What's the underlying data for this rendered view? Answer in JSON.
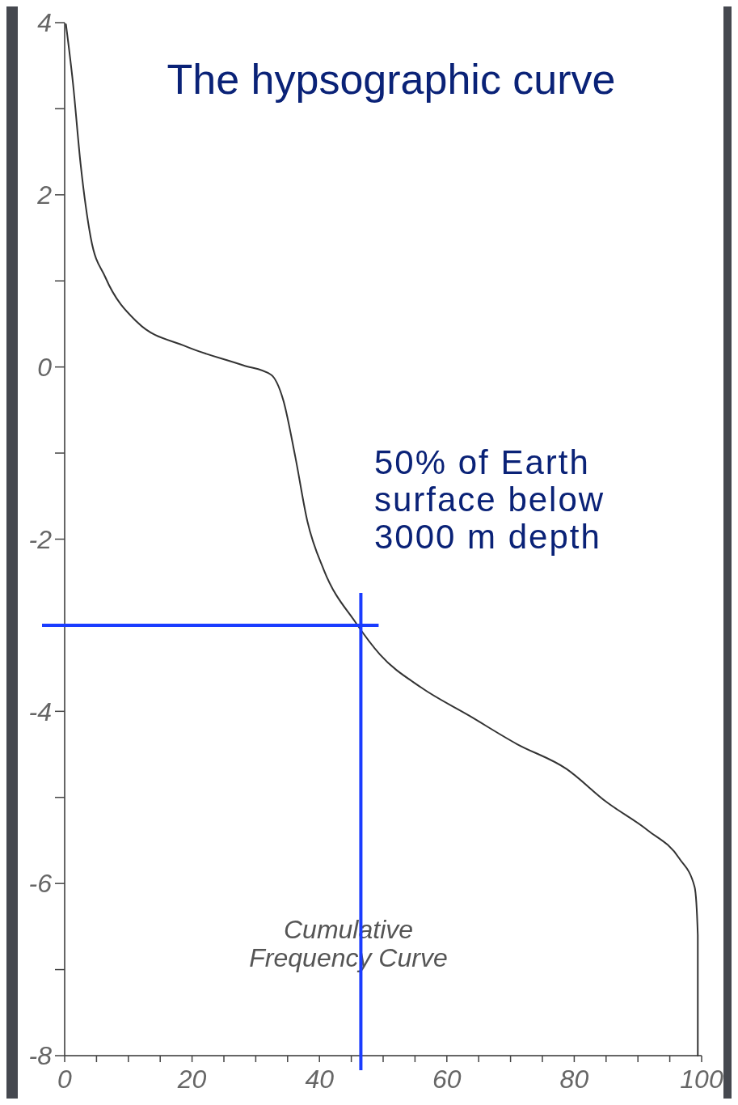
{
  "chart_data": {
    "type": "line",
    "title": "The hypsographic curve",
    "x": [
      0.2,
      1.3,
      2.5,
      4.1,
      6.4,
      11.4,
      19,
      28,
      32.4,
      34.3,
      36.2,
      38.1,
      40.7,
      45.7,
      49.5,
      55.9,
      63.5,
      71,
      78.8,
      85,
      91.5,
      96.5,
      98.9,
      99.4,
      99.4
    ],
    "series": [
      {
        "color": "#333333",
        "values": [
          3.98,
          3.3,
          2.36,
          1.5,
          1.04,
          0.52,
          0.24,
          0.02,
          -0.09,
          -0.38,
          -1.04,
          -1.79,
          -2.36,
          -2.97,
          -3.34,
          -3.72,
          -4.05,
          -4.38,
          -4.67,
          -5.05,
          -5.38,
          -5.71,
          -6.04,
          -6.6,
          -8
        ]
      }
    ],
    "xlim": [
      0,
      100
    ],
    "ylim": [
      -8,
      4
    ],
    "xticks": [
      0,
      {
        "value": 5,
        "label": null
      },
      {
        "value": 10,
        "label": null
      },
      {
        "value": 15,
        "label": null
      },
      20,
      {
        "value": 25,
        "label": null
      },
      {
        "value": 30,
        "label": null
      },
      {
        "value": 35,
        "label": null
      },
      40,
      {
        "value": 45,
        "label": null
      },
      {
        "value": 50,
        "label": null
      },
      {
        "value": 55,
        "label": null
      },
      60,
      {
        "value": 65,
        "label": null
      },
      {
        "value": 70,
        "label": null
      },
      {
        "value": 75,
        "label": null
      },
      80,
      {
        "value": 85,
        "label": null
      },
      {
        "value": 90,
        "label": null
      },
      {
        "value": 95,
        "label": null
      },
      100
    ],
    "yticks": [
      4,
      {
        "value": 3,
        "label": null
      },
      2,
      {
        "value": 1,
        "label": null
      },
      0,
      {
        "value": -1,
        "label": null
      },
      -2,
      {
        "value": -3,
        "label": null
      },
      -4,
      {
        "value": -5,
        "label": null
      },
      -6,
      {
        "value": -7,
        "label": null
      },
      -8
    ],
    "ref_lines": [
      {
        "axis": "y",
        "value": -3,
        "color": "#1a3cff"
      },
      {
        "axis": "x",
        "value": 46.5,
        "color": "#1a3cff"
      }
    ],
    "annotations": [
      "50% of Earth surface below 3000 m depth",
      "Cumulative Frequency Curve"
    ],
    "marker": "none",
    "line_style": "solid"
  }
}
